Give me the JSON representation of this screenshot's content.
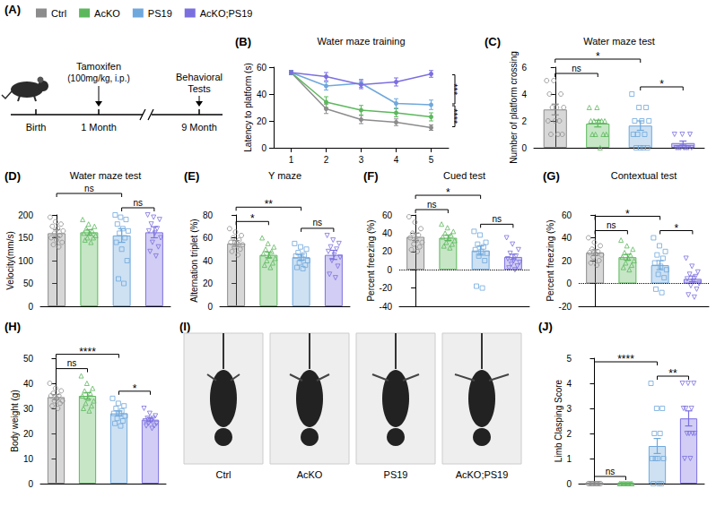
{
  "chart_data": [
    {
      "type": "line",
      "panel": "(B)",
      "title": "Water maze training",
      "ylabel": "Latency to platform (s)",
      "categories": [
        "1",
        "2",
        "3",
        "4",
        "5"
      ],
      "ylim": [
        0,
        60
      ],
      "yticks": [
        0,
        20,
        40,
        60
      ],
      "grid": false,
      "legend": "top-left",
      "marker": "circle",
      "series": [
        {
          "name": "Ctrl",
          "color": "#8c8c8c",
          "values": [
            56,
            29,
            21,
            19,
            15
          ],
          "errors": [
            1.5,
            3.5,
            3,
            2.5,
            2
          ]
        },
        {
          "name": "AcKO",
          "color": "#5cb85c",
          "values": [
            56,
            34,
            28,
            26,
            23
          ],
          "errors": [
            1.5,
            4,
            3.5,
            3,
            3
          ]
        },
        {
          "name": "PS19",
          "color": "#6fa8dc",
          "values": [
            56,
            46,
            48,
            33,
            32
          ],
          "errors": [
            1.5,
            3,
            3,
            3.5,
            3.5
          ]
        },
        {
          "name": "AcKO;PS19",
          "color": "#7b6fe0",
          "values": [
            56,
            53,
            47,
            49,
            55
          ],
          "errors": [
            1.5,
            3,
            3,
            3,
            2.5
          ]
        }
      ],
      "annotations": [
        {
          "from": "PS19",
          "to": "AcKO;PS19",
          "text": "***"
        },
        {
          "from": "Ctrl",
          "to": "PS19",
          "text": "****"
        }
      ]
    },
    {
      "type": "bar",
      "panel": "(C)",
      "title": "Water maze test",
      "ylabel": "Number of platform crossing",
      "ylim": [
        0,
        6
      ],
      "yticks": [
        0,
        2,
        4,
        6
      ],
      "grid": false,
      "tick_labels": "y",
      "series": [
        {
          "name": "Ctrl",
          "color": "#8c8c8c",
          "marker": "circle",
          "values": [
            2.85
          ],
          "errors": [
            0.4
          ],
          "points": [
            5,
            5,
            4,
            4,
            3,
            3,
            3,
            2,
            2,
            2,
            1,
            1,
            1
          ]
        },
        {
          "name": "AcKO",
          "color": "#5cb85c",
          "marker": "triangle",
          "values": [
            1.8
          ],
          "errors": [
            0.25
          ],
          "points": [
            3,
            3,
            2,
            2,
            2,
            2,
            2,
            1,
            1,
            1,
            1,
            0
          ]
        },
        {
          "name": "PS19",
          "color": "#6fa8dc",
          "marker": "square",
          "values": [
            1.65
          ],
          "errors": [
            0.35
          ],
          "points": [
            4,
            3,
            3,
            2,
            2,
            2,
            1,
            1,
            1,
            0,
            0,
            0,
            0
          ]
        },
        {
          "name": "AcKO;PS19",
          "color": "#7b6fe0",
          "marker": "triangle-down",
          "values": [
            0.35
          ],
          "errors": [
            0.15
          ],
          "points": [
            1,
            1,
            1,
            0,
            0,
            0,
            0,
            0,
            0,
            0,
            0,
            0
          ]
        }
      ],
      "annotations": [
        {
          "from": "Ctrl",
          "to": "AcKO",
          "text": "ns"
        },
        {
          "from": "Ctrl",
          "to": "PS19",
          "text": "*"
        },
        {
          "from": "PS19",
          "to": "AcKO;PS19",
          "text": "*"
        }
      ]
    },
    {
      "type": "bar",
      "panel": "(D)",
      "title": "Water maze test",
      "ylabel": "Velocity(mm/s)",
      "ylim": [
        0,
        200
      ],
      "yticks": [
        0,
        50,
        100,
        150,
        200
      ],
      "grid": false,
      "tick_labels": "y",
      "series": [
        {
          "name": "Ctrl",
          "color": "#8c8c8c",
          "marker": "circle",
          "values": [
            160
          ],
          "errors": [
            8
          ],
          "points": [
            195,
            185,
            180,
            175,
            170,
            165,
            160,
            155,
            150,
            145,
            140,
            135,
            130
          ]
        },
        {
          "name": "AcKO",
          "color": "#5cb85c",
          "marker": "triangle",
          "values": [
            162
          ],
          "errors": [
            6
          ],
          "points": [
            190,
            180,
            175,
            170,
            165,
            160,
            160,
            155,
            150,
            150,
            145,
            140
          ]
        },
        {
          "name": "PS19",
          "color": "#6fa8dc",
          "marker": "square",
          "values": [
            155
          ],
          "errors": [
            15
          ],
          "points": [
            200,
            195,
            190,
            180,
            170,
            165,
            160,
            150,
            140,
            125,
            100,
            60,
            50
          ]
        },
        {
          "name": "AcKO;PS19",
          "color": "#7b6fe0",
          "marker": "triangle-down",
          "values": [
            162
          ],
          "errors": [
            12
          ],
          "points": [
            200,
            195,
            190,
            180,
            170,
            165,
            160,
            150,
            140,
            130,
            120,
            110
          ]
        }
      ],
      "annotations": [
        {
          "from": "Ctrl",
          "to": "PS19",
          "text": "ns"
        },
        {
          "from": "PS19",
          "to": "AcKO;PS19",
          "text": "ns"
        }
      ]
    },
    {
      "type": "bar",
      "panel": "(E)",
      "title": "Y maze",
      "ylabel": "Alternation triplet (%)",
      "ylim": [
        0,
        80
      ],
      "yticks": [
        0,
        20,
        40,
        60,
        80
      ],
      "grid": false,
      "tick_labels": "y",
      "series": [
        {
          "name": "Ctrl",
          "color": "#8c8c8c",
          "marker": "circle",
          "values": [
            55
          ],
          "errors": [
            2.5
          ],
          "points": [
            68,
            65,
            62,
            60,
            58,
            56,
            55,
            54,
            52,
            50,
            48,
            45
          ]
        },
        {
          "name": "AcKO",
          "color": "#5cb85c",
          "marker": "triangle",
          "values": [
            45
          ],
          "errors": [
            2.5
          ],
          "points": [
            60,
            55,
            52,
            50,
            48,
            46,
            44,
            42,
            40,
            38,
            36,
            34
          ]
        },
        {
          "name": "PS19",
          "color": "#6fa8dc",
          "marker": "square",
          "values": [
            43
          ],
          "errors": [
            2.5
          ],
          "points": [
            55,
            52,
            50,
            47,
            45,
            44,
            42,
            40,
            38,
            36,
            34,
            33
          ]
        },
        {
          "name": "AcKO;PS19",
          "color": "#7b6fe0",
          "marker": "triangle-down",
          "values": [
            45
          ],
          "errors": [
            4
          ],
          "points": [
            62,
            58,
            55,
            52,
            50,
            48,
            45,
            43,
            40,
            35,
            28,
            25
          ]
        }
      ],
      "annotations": [
        {
          "from": "Ctrl",
          "to": "AcKO",
          "text": "*"
        },
        {
          "from": "Ctrl",
          "to": "PS19",
          "text": "**"
        },
        {
          "from": "PS19",
          "to": "AcKO;PS19",
          "text": "ns"
        }
      ]
    },
    {
      "type": "bar",
      "panel": "(F)",
      "title": "Cued test",
      "ylabel": "Percent freezing (%)",
      "ylim": [
        -40,
        60
      ],
      "yticks": [
        -40,
        -20,
        0,
        20,
        40,
        60
      ],
      "grid": false,
      "tick_labels": "y",
      "series": [
        {
          "name": "Ctrl",
          "color": "#8c8c8c",
          "marker": "circle",
          "values": [
            36
          ],
          "errors": [
            4
          ],
          "points": [
            58,
            52,
            45,
            40,
            38,
            35,
            32,
            30,
            28,
            25,
            22,
            20
          ]
        },
        {
          "name": "AcKO",
          "color": "#5cb85c",
          "marker": "triangle",
          "values": [
            35
          ],
          "errors": [
            3
          ],
          "points": [
            50,
            46,
            42,
            40,
            38,
            36,
            34,
            32,
            30,
            28,
            26,
            24
          ]
        },
        {
          "name": "PS19",
          "color": "#6fa8dc",
          "marker": "square",
          "values": [
            21
          ],
          "errors": [
            5
          ],
          "points": [
            42,
            38,
            30,
            28,
            25,
            22,
            20,
            18,
            15,
            10,
            -18,
            -20
          ]
        },
        {
          "name": "AcKO;PS19",
          "color": "#7b6fe0",
          "marker": "triangle-down",
          "values": [
            14
          ],
          "errors": [
            3
          ],
          "points": [
            35,
            28,
            22,
            18,
            15,
            12,
            10,
            8,
            6,
            4,
            2,
            0
          ]
        }
      ],
      "annotations": [
        {
          "from": "Ctrl",
          "to": "AcKO",
          "text": "ns"
        },
        {
          "from": "Ctrl",
          "to": "PS19",
          "text": "*"
        },
        {
          "from": "PS19",
          "to": "AcKO;PS19",
          "text": "ns"
        }
      ]
    },
    {
      "type": "bar",
      "panel": "(G)",
      "title": "Contextual test",
      "ylabel": "Percent freezing (%)",
      "ylim": [
        -20,
        60
      ],
      "yticks": [
        -20,
        0,
        20,
        40,
        60
      ],
      "grid": false,
      "tick_labels": "y",
      "series": [
        {
          "name": "Ctrl",
          "color": "#8c8c8c",
          "marker": "circle",
          "values": [
            27
          ],
          "errors": [
            2.5
          ],
          "points": [
            40,
            36,
            33,
            30,
            28,
            27,
            26,
            25,
            23,
            20,
            18,
            16
          ]
        },
        {
          "name": "AcKO",
          "color": "#5cb85c",
          "marker": "triangle",
          "values": [
            23
          ],
          "errors": [
            2.5
          ],
          "points": [
            38,
            33,
            30,
            27,
            25,
            23,
            22,
            20,
            18,
            16,
            14,
            12
          ]
        },
        {
          "name": "PS19",
          "color": "#6fa8dc",
          "marker": "square",
          "values": [
            16
          ],
          "errors": [
            4
          ],
          "points": [
            40,
            33,
            28,
            25,
            22,
            18,
            15,
            12,
            8,
            5,
            -5,
            -8
          ]
        },
        {
          "name": "AcKO;PS19",
          "color": "#7b6fe0",
          "marker": "triangle-down",
          "values": [
            4
          ],
          "errors": [
            2.5
          ],
          "points": [
            22,
            15,
            10,
            8,
            6,
            4,
            2,
            0,
            -2,
            -5,
            -10,
            -12
          ]
        }
      ],
      "annotations": [
        {
          "from": "Ctrl",
          "to": "AcKO",
          "text": "ns"
        },
        {
          "from": "Ctrl",
          "to": "PS19",
          "text": "*"
        },
        {
          "from": "PS19",
          "to": "AcKO;PS19",
          "text": "*"
        }
      ]
    },
    {
      "type": "bar",
      "panel": "(H)",
      "ylabel": "Body weight (g)",
      "ylim": [
        0,
        50
      ],
      "yticks": [
        0,
        10,
        20,
        30,
        40,
        50
      ],
      "grid": false,
      "tick_labels": "y",
      "series": [
        {
          "name": "Ctrl",
          "color": "#8c8c8c",
          "marker": "circle",
          "values": [
            34.5
          ],
          "errors": [
            1
          ],
          "points": [
            40,
            38,
            37,
            36,
            35,
            35,
            34,
            33,
            33,
            32,
            31,
            30
          ]
        },
        {
          "name": "AcKO",
          "color": "#5cb85c",
          "marker": "triangle",
          "values": [
            35
          ],
          "errors": [
            1.3
          ],
          "points": [
            43,
            40,
            38,
            37,
            36,
            35,
            34,
            33,
            32,
            31,
            30,
            29
          ]
        },
        {
          "name": "PS19",
          "color": "#6fa8dc",
          "marker": "square",
          "values": [
            28
          ],
          "errors": [
            1
          ],
          "points": [
            34,
            32,
            31,
            30,
            29,
            28,
            28,
            27,
            26,
            25,
            24,
            23
          ]
        },
        {
          "name": "AcKO;PS19",
          "color": "#7b6fe0",
          "marker": "triangle-down",
          "values": [
            25.5
          ],
          "errors": [
            0.8
          ],
          "points": [
            30,
            28,
            27,
            26,
            26,
            25,
            25,
            24,
            24,
            23,
            23,
            22
          ]
        }
      ],
      "annotations": [
        {
          "from": "Ctrl",
          "to": "AcKO",
          "text": "ns"
        },
        {
          "from": "Ctrl",
          "to": "PS19",
          "text": "****"
        },
        {
          "from": "PS19",
          "to": "AcKO;PS19",
          "text": "*"
        }
      ]
    },
    {
      "type": "bar",
      "panel": "(J)",
      "ylabel": "Limb Clasping Score",
      "ylim": [
        0,
        5
      ],
      "yticks": [
        0,
        1,
        2,
        3,
        4,
        5
      ],
      "grid": false,
      "tick_labels": "y",
      "series": [
        {
          "name": "Ctrl",
          "color": "#8c8c8c",
          "marker": "circle",
          "values": [
            0
          ],
          "errors": [
            0
          ],
          "points": [
            0,
            0,
            0,
            0,
            0,
            0,
            0,
            0,
            0,
            0,
            0,
            0
          ]
        },
        {
          "name": "AcKO",
          "color": "#5cb85c",
          "marker": "triangle",
          "values": [
            0
          ],
          "errors": [
            0
          ],
          "points": [
            0,
            0,
            0,
            0,
            0,
            0,
            0,
            0,
            0,
            0,
            0,
            0
          ]
        },
        {
          "name": "PS19",
          "color": "#6fa8dc",
          "marker": "square",
          "values": [
            1.5
          ],
          "errors": [
            0.3
          ],
          "points": [
            4,
            3,
            3,
            2,
            2,
            1,
            1,
            1,
            1,
            0,
            0,
            0
          ]
        },
        {
          "name": "AcKO;PS19",
          "color": "#7b6fe0",
          "marker": "triangle-down",
          "values": [
            2.6
          ],
          "errors": [
            0.3
          ],
          "points": [
            4,
            4,
            4,
            3,
            3,
            3,
            2,
            2,
            2,
            2,
            1,
            1
          ]
        }
      ],
      "annotations": [
        {
          "from": "Ctrl",
          "to": "AcKO",
          "text": "ns"
        },
        {
          "from": "Ctrl",
          "to": "PS19",
          "text": "****"
        },
        {
          "from": "PS19",
          "to": "AcKO;PS19",
          "text": "**"
        }
      ]
    }
  ],
  "timeline": {
    "panel": "(A)",
    "drug": "Tamoxifen",
    "dose": "(100mg/kg, i.p.)",
    "event": "Behavioral Tests",
    "milestones": [
      "Birth",
      "1 Month",
      "9 Month"
    ]
  },
  "photos": {
    "panel": "(I)",
    "captions": [
      "Ctrl",
      "AcKO",
      "PS19",
      "AcKO;PS19"
    ]
  }
}
